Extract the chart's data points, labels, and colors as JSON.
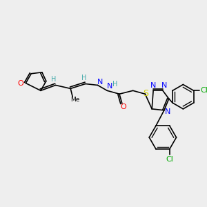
{
  "bg_color": "#eeeeee",
  "bond_color": "#000000",
  "atom_colors": {
    "O": "#ff0000",
    "N": "#0000ff",
    "S": "#cccc00",
    "Cl": "#00aa00",
    "H": "#44aaaa",
    "C": "#000000"
  },
  "font_size": 7,
  "bond_width": 1.2
}
